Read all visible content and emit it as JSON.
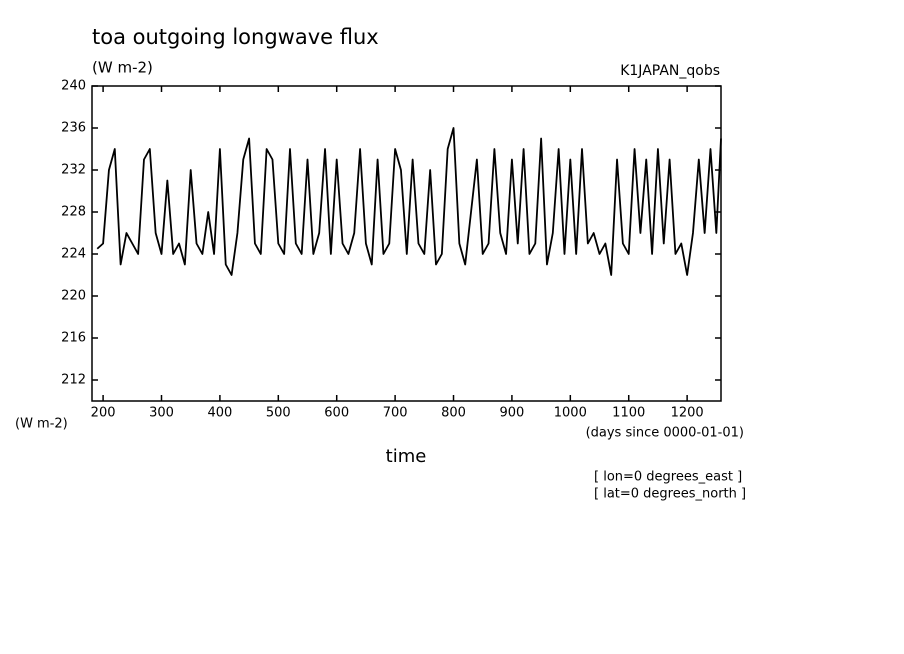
{
  "chart_data": {
    "type": "line",
    "title": "toa outgoing longwave flux",
    "subtitle": "(W m-2)",
    "source_label": "K1JAPAN_qobs",
    "y_axis_label": "(W m-2)",
    "x_axis_units": "(days since 0000-01-01)",
    "x_axis_label": "time",
    "annotations": [
      "[ lon=0 degrees_east ]",
      "[ lat=0 degrees_north ]"
    ],
    "xlim": [
      181,
      1258
    ],
    "ylim": [
      210,
      240
    ],
    "xticks": [
      200,
      300,
      400,
      500,
      600,
      700,
      800,
      900,
      1000,
      1100,
      1200
    ],
    "yticks": [
      212,
      216,
      220,
      224,
      228,
      232,
      236,
      240
    ],
    "x": [
      190,
      200,
      210,
      220,
      230,
      240,
      250,
      260,
      270,
      280,
      290,
      300,
      310,
      320,
      330,
      340,
      350,
      360,
      370,
      380,
      390,
      400,
      410,
      420,
      430,
      440,
      450,
      460,
      470,
      480,
      490,
      500,
      510,
      520,
      530,
      540,
      550,
      560,
      570,
      580,
      590,
      600,
      610,
      620,
      630,
      640,
      650,
      660,
      670,
      680,
      690,
      700,
      710,
      720,
      730,
      740,
      750,
      760,
      770,
      780,
      790,
      800,
      810,
      820,
      830,
      840,
      850,
      860,
      870,
      880,
      890,
      900,
      910,
      920,
      930,
      940,
      950,
      960,
      970,
      980,
      990,
      1000,
      1010,
      1020,
      1030,
      1040,
      1050,
      1060,
      1070,
      1080,
      1090,
      1100,
      1110,
      1120,
      1130,
      1140,
      1150,
      1160,
      1170,
      1180,
      1190,
      1200,
      1210,
      1220,
      1230,
      1240,
      1250,
      1258
    ],
    "series": [
      {
        "name": "toa outgoing longwave flux",
        "color": "#000000",
        "values": [
          224.5,
          225,
          232,
          234,
          223,
          226,
          225,
          224,
          233,
          234,
          226,
          224,
          231,
          224,
          225,
          223,
          232,
          225,
          224,
          228,
          224,
          234,
          223,
          222,
          226,
          233,
          235,
          225,
          224,
          234,
          233,
          225,
          224,
          234,
          225,
          224,
          233,
          224,
          226,
          234,
          224,
          233,
          225,
          224,
          226,
          234,
          225,
          223,
          233,
          224,
          225,
          234,
          232,
          224,
          233,
          225,
          224,
          232,
          223,
          224,
          234,
          236,
          225,
          223,
          228,
          233,
          224,
          225,
          234,
          226,
          224,
          233,
          225,
          234,
          224,
          225,
          235,
          223,
          226,
          234,
          224,
          233,
          224,
          234,
          225,
          226,
          224,
          225,
          222,
          233,
          225,
          224,
          234,
          226,
          233,
          224,
          234,
          225,
          233,
          224,
          225,
          222,
          226,
          233,
          226,
          234,
          226,
          235
        ]
      }
    ]
  }
}
